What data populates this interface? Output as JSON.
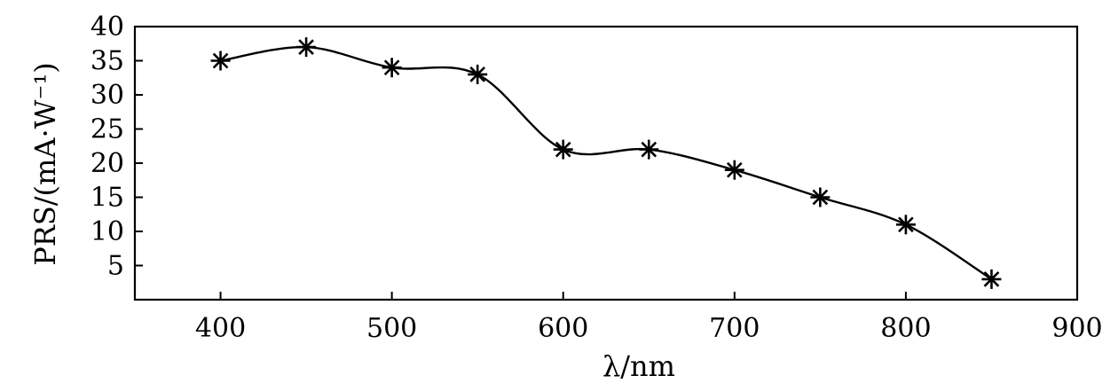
{
  "chart_data": {
    "type": "line",
    "title": "",
    "xlabel": "λ/nm",
    "ylabel": "PRS/(mA·W⁻¹)",
    "xlim": [
      350,
      900
    ],
    "ylim": [
      0,
      40
    ],
    "xticks": [
      400,
      500,
      600,
      700,
      800,
      900
    ],
    "yticks": [
      5,
      10,
      15,
      20,
      25,
      30,
      35,
      40
    ],
    "grid": false,
    "legend": "none",
    "marker": "asterisk",
    "line_style": "smooth",
    "x": [
      400,
      450,
      500,
      550,
      600,
      650,
      700,
      750,
      800,
      850
    ],
    "series": [
      {
        "values": [
          35,
          37,
          34,
          33,
          22,
          22,
          19,
          15,
          11,
          3
        ]
      }
    ]
  }
}
